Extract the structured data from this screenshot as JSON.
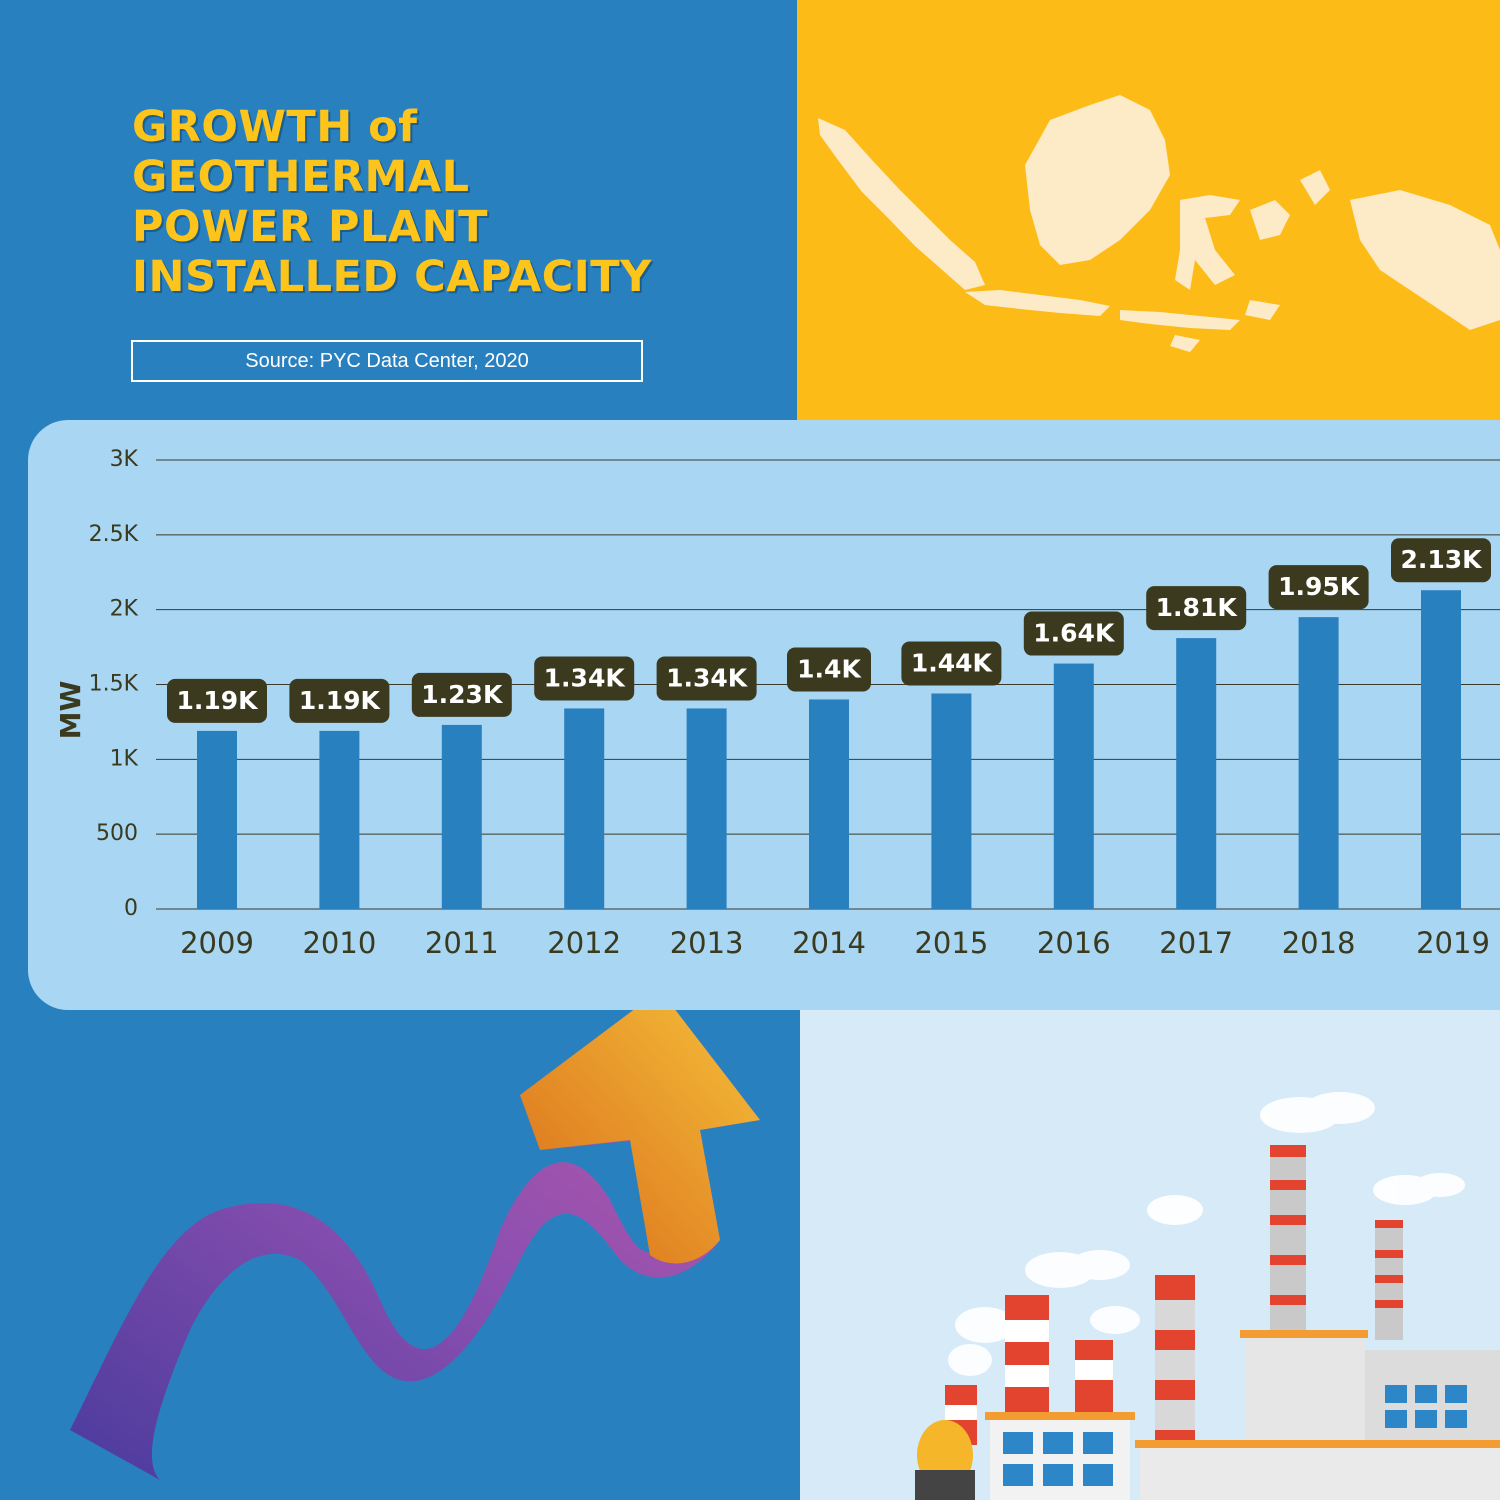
{
  "title": {
    "line1": "GROWTH of",
    "line2": "GEOTHERMAL",
    "line3": "POWER PLANT",
    "line4": "INSTALLED CAPACITY"
  },
  "source": "Source: PYC Data Center, 2020",
  "colors": {
    "background_blue": "#2980bf",
    "accent_yellow": "#fdbb18",
    "chart_panel": "#a8d6f3",
    "bar": "#2980bf",
    "label_box": "#3c3a1e",
    "title_text": "#fdc51c"
  },
  "chart_data": {
    "type": "bar",
    "categories": [
      "2009",
      "2010",
      "2011",
      "2012",
      "2013",
      "2014",
      "2015",
      "2016",
      "2017",
      "2018",
      "2019"
    ],
    "values": [
      1190,
      1190,
      1230,
      1340,
      1340,
      1400,
      1440,
      1640,
      1810,
      1950,
      2130
    ],
    "data_labels": [
      "1.19K",
      "1.19K",
      "1.23K",
      "1.34K",
      "1.34K",
      "1.4K",
      "1.44K",
      "1.64K",
      "1.81K",
      "1.95K",
      "2.13K"
    ],
    "title": "GROWTH of GEOTHERMAL POWER PLANT INSTALLED CAPACITY",
    "xlabel": "",
    "ylabel": "MW",
    "ylim": [
      0,
      3000
    ],
    "yticks": [
      0,
      500,
      1000,
      1500,
      2000,
      2500,
      3000
    ],
    "ytick_labels": [
      "0",
      "500",
      "1K",
      "1.5K",
      "2K",
      "2.5K",
      "3K"
    ],
    "grid": true,
    "legend": "none"
  },
  "decorations": {
    "map_icon": "indonesia-map-icon",
    "arrow_icon": "growth-arrow-icon",
    "factory_icon": "power-plant-illustration"
  }
}
